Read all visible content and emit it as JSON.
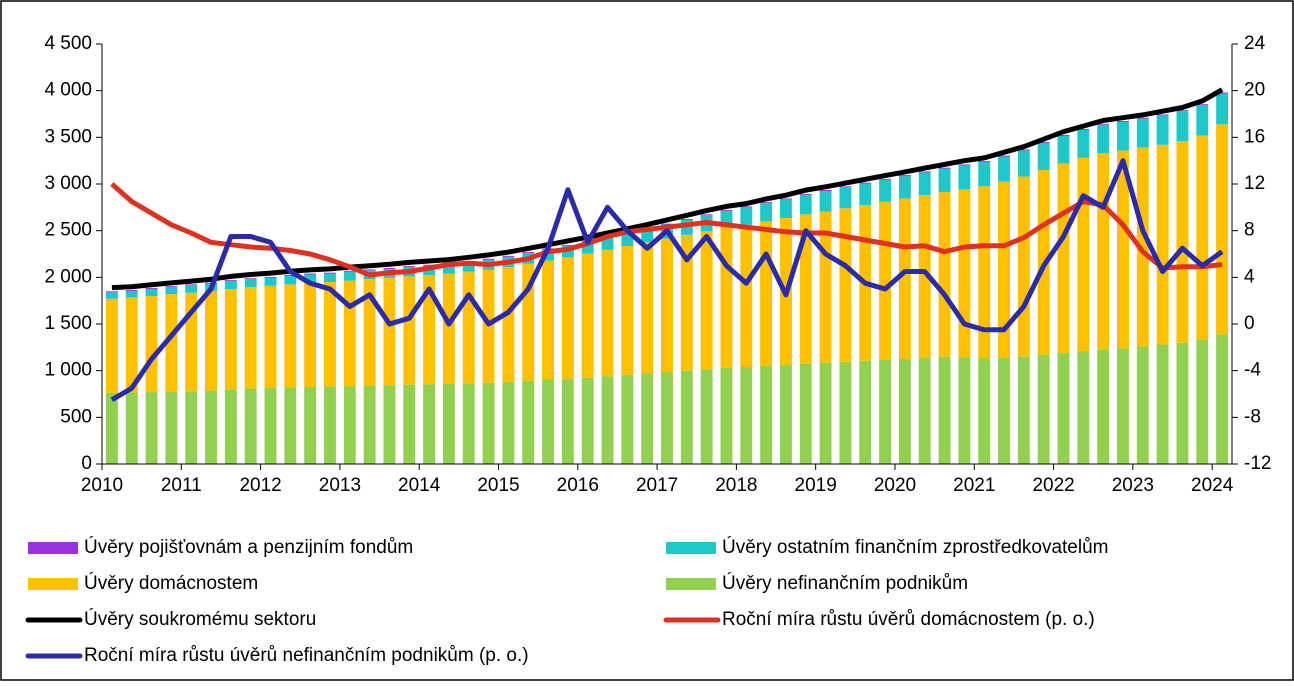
{
  "chart_data": {
    "type": "bar",
    "stacked": true,
    "categories": [
      "2010",
      null,
      null,
      null,
      "2011",
      null,
      null,
      null,
      "2012",
      null,
      null,
      null,
      "2013",
      null,
      null,
      null,
      "2014",
      null,
      null,
      null,
      "2015",
      null,
      null,
      null,
      "2016",
      null,
      null,
      null,
      "2017",
      null,
      null,
      null,
      "2018",
      null,
      null,
      null,
      "2019",
      null,
      null,
      null,
      "2020",
      null,
      null,
      null,
      "2021",
      null,
      null,
      null,
      "2022",
      null,
      null,
      null,
      "2023",
      null,
      null,
      null,
      "2024"
    ],
    "ylim": [
      0,
      4500
    ],
    "yticks": [
      0,
      500,
      {
        "value": 1000,
        "label": "1 000"
      },
      {
        "value": 1500,
        "label": "1 500"
      },
      {
        "value": 2000,
        "label": "2 000"
      },
      {
        "value": 2500,
        "label": "2 500"
      },
      {
        "value": 3000,
        "label": "3 000"
      },
      {
        "value": 3500,
        "label": "3 500"
      },
      {
        "value": 4000,
        "label": "4 000"
      },
      {
        "value": 4500,
        "label": "4 500"
      }
    ],
    "y2lim": [
      -12,
      24
    ],
    "y2ticks": [
      -12,
      -8,
      -4,
      0,
      4,
      8,
      12,
      16,
      20,
      24
    ],
    "series": [
      {
        "name": "Úvěry nefinančním podnikům",
        "type": "bar",
        "color": "#92d050",
        "values": [
          760,
          765,
          770,
          775,
          780,
          790,
          800,
          810,
          815,
          820,
          825,
          830,
          835,
          840,
          845,
          850,
          855,
          860,
          865,
          870,
          880,
          890,
          900,
          910,
          925,
          940,
          955,
          970,
          985,
          1000,
          1015,
          1030,
          1040,
          1050,
          1060,
          1075,
          1085,
          1095,
          1105,
          1115,
          1125,
          1140,
          1150,
          1145,
          1135,
          1140,
          1150,
          1170,
          1190,
          1210,
          1230,
          1240,
          1260,
          1280,
          1300,
          1330,
          1390
        ]
      },
      {
        "name": "Úvěry domácnostem",
        "type": "bar",
        "color": "#ffc000",
        "values": [
          1010,
          1020,
          1030,
          1045,
          1055,
          1065,
          1075,
          1085,
          1095,
          1105,
          1115,
          1120,
          1130,
          1140,
          1150,
          1160,
          1170,
          1180,
          1195,
          1210,
          1230,
          1255,
          1280,
          1305,
          1330,
          1355,
          1380,
          1405,
          1430,
          1455,
          1480,
          1505,
          1525,
          1550,
          1575,
          1600,
          1620,
          1645,
          1670,
          1695,
          1720,
          1740,
          1765,
          1800,
          1840,
          1885,
          1930,
          1980,
          2030,
          2070,
          2100,
          2120,
          2130,
          2140,
          2160,
          2190,
          2250
        ]
      },
      {
        "name": "Úvěry ostatním finančním zprostředkovatelům",
        "type": "bar",
        "color": "#1fc8c8",
        "values": [
          70,
          70,
          75,
          75,
          80,
          80,
          85,
          85,
          85,
          90,
          90,
          90,
          95,
          95,
          95,
          100,
          100,
          100,
          105,
          110,
          110,
          115,
          120,
          120,
          125,
          130,
          135,
          140,
          150,
          160,
          170,
          175,
          185,
          195,
          200,
          210,
          220,
          225,
          230,
          235,
          240,
          245,
          250,
          255,
          260,
          270,
          280,
          290,
          295,
          300,
          305,
          305,
          310,
          315,
          320,
          325,
          330
        ]
      },
      {
        "name": "Úvěry pojišťovnám a penzijním fondům",
        "type": "bar",
        "color": "#9b30e0",
        "values": [
          10,
          10,
          10,
          10,
          10,
          10,
          10,
          10,
          10,
          10,
          10,
          10,
          10,
          10,
          10,
          10,
          10,
          10,
          10,
          10,
          10,
          10,
          10,
          10,
          10,
          10,
          10,
          10,
          10,
          10,
          10,
          10,
          10,
          10,
          10,
          10,
          10,
          10,
          10,
          10,
          10,
          10,
          10,
          10,
          10,
          10,
          10,
          10,
          10,
          10,
          10,
          10,
          10,
          10,
          10,
          10,
          10
        ]
      },
      {
        "name": "Úvěry soukromému sektoru",
        "type": "line",
        "color": "#000000",
        "values": [
          1890,
          1900,
          1920,
          1940,
          1960,
          1980,
          2010,
          2030,
          2045,
          2065,
          2080,
          2090,
          2110,
          2125,
          2140,
          2160,
          2175,
          2190,
          2215,
          2240,
          2270,
          2310,
          2350,
          2390,
          2430,
          2475,
          2520,
          2565,
          2615,
          2665,
          2715,
          2760,
          2790,
          2840,
          2880,
          2935,
          2970,
          3010,
          3050,
          3090,
          3130,
          3170,
          3210,
          3250,
          3280,
          3340,
          3400,
          3480,
          3560,
          3620,
          3680,
          3710,
          3740,
          3780,
          3820,
          3890,
          4010
        ]
      },
      {
        "name": "Roční míra růstu úvěrů domácnostem (p. o.)",
        "type": "line",
        "axis": "y2",
        "color": "#e03020",
        "values": [
          12,
          10.5,
          9.5,
          8.5,
          7.8,
          7,
          6.8,
          6.6,
          6.5,
          6.3,
          6,
          5.5,
          4.9,
          4.2,
          4.4,
          4.5,
          4.8,
          5.1,
          5.2,
          5.1,
          5.3,
          5.6,
          6.2,
          6.4,
          6.9,
          7.5,
          7.9,
          8.1,
          8.3,
          8.5,
          8.7,
          8.5,
          8.3,
          8.1,
          7.9,
          7.8,
          7.8,
          7.5,
          7.2,
          6.9,
          6.6,
          6.7,
          6.2,
          6.6,
          6.7,
          6.7,
          7.4,
          8.5,
          9.5,
          10.5,
          10.2,
          8.5,
          6.2,
          4.8,
          4.9,
          4.9,
          5.1
        ]
      },
      {
        "name": "Roční míra růstu úvěrů nefinančním podnikům (p. o.)",
        "type": "line",
        "axis": "y2",
        "color": "#2b2baa",
        "values": [
          -6.5,
          -5.5,
          -3,
          -1,
          1,
          3,
          7.5,
          7.5,
          7,
          4.5,
          3.5,
          3,
          1.5,
          2.5,
          0,
          0.5,
          3,
          0,
          2.5,
          0,
          1,
          3,
          6.5,
          11.5,
          7,
          10,
          8,
          6.5,
          8,
          5.5,
          7.5,
          5,
          3.5,
          6,
          2.5,
          8,
          6,
          5,
          3.5,
          3,
          4.5,
          4.5,
          2.5,
          0,
          -0.5,
          -0.5,
          1.5,
          5,
          7.5,
          11,
          10,
          14,
          8,
          4.5,
          6.5,
          5,
          6.2
        ]
      }
    ],
    "legend_order": [
      3,
      2,
      1,
      0,
      4,
      5,
      6
    ]
  }
}
